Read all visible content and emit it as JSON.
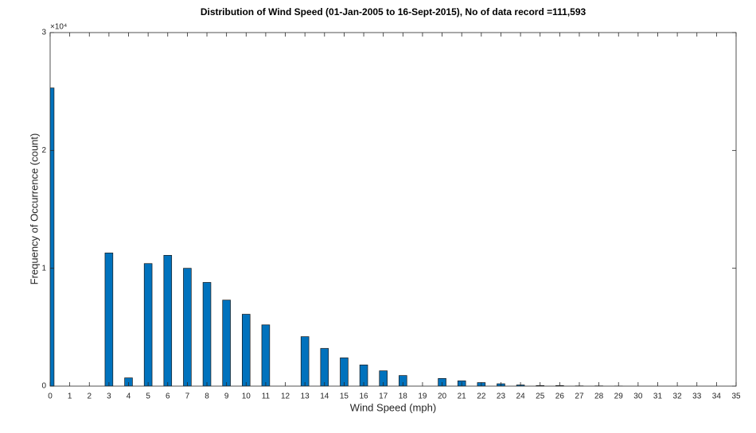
{
  "chart_data": {
    "type": "bar",
    "title": "Distribution of Wind Speed (01-Jan-2005 to 16-Sept-2015), No of data record =111,593",
    "x_label": "Wind Speed (mph)",
    "y_label": "Frequency of Occurrence (count)",
    "y_exponent": "×10⁴",
    "x": [
      0,
      1,
      2,
      3,
      4,
      5,
      6,
      7,
      8,
      9,
      10,
      11,
      12,
      13,
      14,
      15,
      16,
      17,
      18,
      19,
      20,
      21,
      22,
      23,
      24,
      25,
      26,
      27,
      28,
      29,
      30,
      31,
      32,
      33,
      34,
      35
    ],
    "values": [
      25300,
      0,
      0,
      11300,
      700,
      10400,
      11100,
      10000,
      8800,
      7300,
      6100,
      5200,
      0,
      4200,
      3200,
      2400,
      1800,
      1300,
      900,
      0,
      650,
      450,
      300,
      200,
      100,
      50,
      50,
      20,
      20,
      10,
      0,
      0,
      0,
      0,
      0,
      0
    ],
    "color": "#0072bd",
    "xlim": [
      0,
      35
    ],
    "xticks": [
      0,
      1,
      2,
      3,
      4,
      5,
      6,
      7,
      8,
      9,
      10,
      11,
      12,
      13,
      14,
      15,
      16,
      17,
      18,
      19,
      20,
      21,
      22,
      23,
      24,
      25,
      26,
      27,
      28,
      29,
      30,
      31,
      32,
      33,
      34,
      35
    ],
    "ylim": [
      0,
      30000
    ],
    "yticks": [
      {
        "value": 0,
        "label": "0"
      },
      {
        "value": 10000,
        "label": "1"
      },
      {
        "value": 20000,
        "label": "2"
      },
      {
        "value": 30000,
        "label": "3"
      }
    ]
  }
}
